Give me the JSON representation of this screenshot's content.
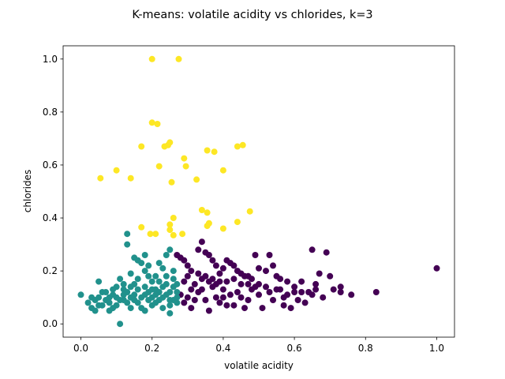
{
  "chart_data": {
    "type": "scatter",
    "title": "K-means: volatile acidity vs chlorides, k=3",
    "xlabel": "volatile acidity",
    "ylabel": "chlorides",
    "xlim": [
      -0.05,
      1.05
    ],
    "ylim": [
      -0.05,
      1.05
    ],
    "xticks": [
      "0.0",
      "0.2",
      "0.4",
      "0.6",
      "0.8",
      "1.0"
    ],
    "yticks": [
      "0.0",
      "0.2",
      "0.4",
      "0.6",
      "0.8",
      "1.0"
    ],
    "grid": false,
    "legend": "none",
    "colormap": "viridis",
    "series": [
      {
        "cluster": 0,
        "color": "#440154",
        "points": [
          [
            0.27,
            0.26
          ],
          [
            0.28,
            0.25
          ],
          [
            0.29,
            0.24
          ],
          [
            0.3,
            0.22
          ],
          [
            0.31,
            0.2
          ],
          [
            0.32,
            0.15
          ],
          [
            0.33,
            0.28
          ],
          [
            0.34,
            0.31
          ],
          [
            0.35,
            0.27
          ],
          [
            0.36,
            0.26
          ],
          [
            0.37,
            0.24
          ],
          [
            0.38,
            0.22
          ],
          [
            0.39,
            0.19
          ],
          [
            0.4,
            0.21
          ],
          [
            0.41,
            0.24
          ],
          [
            0.42,
            0.23
          ],
          [
            0.43,
            0.22
          ],
          [
            0.44,
            0.2
          ],
          [
            0.45,
            0.19
          ],
          [
            0.46,
            0.18
          ],
          [
            0.47,
            0.18
          ],
          [
            0.48,
            0.17
          ],
          [
            0.49,
            0.26
          ],
          [
            0.5,
            0.21
          ],
          [
            0.52,
            0.2
          ],
          [
            0.53,
            0.26
          ],
          [
            0.54,
            0.22
          ],
          [
            0.55,
            0.18
          ],
          [
            0.56,
            0.17
          ],
          [
            0.58,
            0.16
          ],
          [
            0.6,
            0.14
          ],
          [
            0.62,
            0.16
          ],
          [
            0.65,
            0.28
          ],
          [
            0.66,
            0.15
          ],
          [
            0.67,
            0.19
          ],
          [
            0.69,
            0.27
          ],
          [
            0.7,
            0.18
          ],
          [
            0.73,
            0.14
          ],
          [
            0.76,
            0.11
          ],
          [
            0.83,
            0.12
          ],
          [
            1.0,
            0.21
          ],
          [
            0.68,
            0.1
          ],
          [
            0.64,
            0.12
          ],
          [
            0.61,
            0.09
          ],
          [
            0.59,
            0.06
          ],
          [
            0.57,
            0.1
          ],
          [
            0.51,
            0.06
          ],
          [
            0.5,
            0.11
          ],
          [
            0.46,
            0.06
          ],
          [
            0.41,
            0.07
          ],
          [
            0.36,
            0.05
          ],
          [
            0.31,
            0.06
          ],
          [
            0.3,
            0.1
          ],
          [
            0.33,
            0.12
          ],
          [
            0.35,
            0.09
          ],
          [
            0.38,
            0.1
          ],
          [
            0.4,
            0.13
          ],
          [
            0.42,
            0.11
          ],
          [
            0.44,
            0.12
          ],
          [
            0.47,
            0.09
          ],
          [
            0.29,
            0.08
          ],
          [
            0.32,
            0.09
          ],
          [
            0.34,
            0.13
          ],
          [
            0.37,
            0.14
          ],
          [
            0.39,
            0.08
          ],
          [
            0.43,
            0.07
          ],
          [
            0.45,
            0.1
          ],
          [
            0.48,
            0.13
          ],
          [
            0.53,
            0.12
          ],
          [
            0.55,
            0.13
          ],
          [
            0.58,
            0.11
          ],
          [
            0.63,
            0.08
          ],
          [
            0.71,
            0.13
          ],
          [
            0.73,
            0.12
          ],
          [
            0.28,
            0.11
          ],
          [
            0.31,
            0.13
          ],
          [
            0.34,
            0.17
          ],
          [
            0.36,
            0.16
          ],
          [
            0.38,
            0.15
          ],
          [
            0.41,
            0.16
          ],
          [
            0.45,
            0.15
          ],
          [
            0.49,
            0.14
          ],
          [
            0.52,
            0.14
          ],
          [
            0.56,
            0.13
          ],
          [
            0.6,
            0.12
          ],
          [
            0.65,
            0.11
          ],
          [
            0.29,
            0.16
          ],
          [
            0.3,
            0.18
          ],
          [
            0.33,
            0.19
          ],
          [
            0.35,
            0.18
          ],
          [
            0.37,
            0.17
          ],
          [
            0.39,
            0.16
          ],
          [
            0.43,
            0.17
          ],
          [
            0.47,
            0.15
          ],
          [
            0.5,
            0.15
          ],
          [
            0.54,
            0.09
          ],
          [
            0.57,
            0.07
          ],
          [
            0.62,
            0.12
          ],
          [
            0.66,
            0.13
          ],
          [
            0.4,
            0.1
          ]
        ]
      },
      {
        "cluster": 1,
        "color": "#21918c",
        "points": [
          [
            0.0,
            0.11
          ],
          [
            0.02,
            0.08
          ],
          [
            0.03,
            0.1
          ],
          [
            0.04,
            0.09
          ],
          [
            0.05,
            0.16
          ],
          [
            0.05,
            0.07
          ],
          [
            0.06,
            0.12
          ],
          [
            0.07,
            0.09
          ],
          [
            0.08,
            0.05
          ],
          [
            0.09,
            0.11
          ],
          [
            0.1,
            0.14
          ],
          [
            0.11,
            0.17
          ],
          [
            0.11,
            0.0
          ],
          [
            0.12,
            0.13
          ],
          [
            0.13,
            0.34
          ],
          [
            0.13,
            0.3
          ],
          [
            0.14,
            0.19
          ],
          [
            0.15,
            0.15
          ],
          [
            0.15,
            0.25
          ],
          [
            0.16,
            0.24
          ],
          [
            0.17,
            0.23
          ],
          [
            0.18,
            0.26
          ],
          [
            0.18,
            0.2
          ],
          [
            0.19,
            0.22
          ],
          [
            0.2,
            0.16
          ],
          [
            0.21,
            0.18
          ],
          [
            0.22,
            0.23
          ],
          [
            0.23,
            0.21
          ],
          [
            0.24,
            0.26
          ],
          [
            0.25,
            0.28
          ],
          [
            0.26,
            0.14
          ],
          [
            0.27,
            0.12
          ],
          [
            0.25,
            0.04
          ],
          [
            0.22,
            0.09
          ],
          [
            0.2,
            0.07
          ],
          [
            0.18,
            0.05
          ],
          [
            0.16,
            0.08
          ],
          [
            0.14,
            0.06
          ],
          [
            0.12,
            0.09
          ],
          [
            0.1,
            0.07
          ],
          [
            0.08,
            0.1
          ],
          [
            0.06,
            0.07
          ],
          [
            0.04,
            0.05
          ],
          [
            0.03,
            0.06
          ],
          [
            0.09,
            0.06
          ],
          [
            0.13,
            0.12
          ],
          [
            0.15,
            0.11
          ],
          [
            0.17,
            0.1
          ],
          [
            0.19,
            0.12
          ],
          [
            0.21,
            0.13
          ],
          [
            0.23,
            0.1
          ],
          [
            0.24,
            0.11
          ],
          [
            0.26,
            0.09
          ],
          [
            0.27,
            0.1
          ],
          [
            0.11,
            0.09
          ],
          [
            0.13,
            0.08
          ],
          [
            0.16,
            0.13
          ],
          [
            0.18,
            0.14
          ],
          [
            0.2,
            0.1
          ],
          [
            0.22,
            0.12
          ],
          [
            0.24,
            0.15
          ],
          [
            0.26,
            0.17
          ],
          [
            0.07,
            0.12
          ],
          [
            0.09,
            0.13
          ],
          [
            0.12,
            0.11
          ],
          [
            0.14,
            0.1
          ],
          [
            0.17,
            0.06
          ],
          [
            0.19,
            0.09
          ],
          [
            0.21,
            0.08
          ],
          [
            0.23,
            0.06
          ],
          [
            0.25,
            0.07
          ],
          [
            0.27,
            0.08
          ],
          [
            0.1,
            0.1
          ],
          [
            0.15,
            0.09
          ],
          [
            0.2,
            0.13
          ],
          [
            0.25,
            0.12
          ],
          [
            0.05,
            0.1
          ],
          [
            0.08,
            0.08
          ],
          [
            0.12,
            0.15
          ],
          [
            0.16,
            0.17
          ],
          [
            0.19,
            0.18
          ],
          [
            0.22,
            0.16
          ],
          [
            0.24,
            0.18
          ],
          [
            0.26,
            0.2
          ],
          [
            0.27,
            0.15
          ],
          [
            0.14,
            0.14
          ],
          [
            0.18,
            0.11
          ],
          [
            0.21,
            0.11
          ],
          [
            0.23,
            0.14
          ],
          [
            0.25,
            0.09
          ]
        ]
      },
      {
        "cluster": 2,
        "color": "#fde725",
        "points": [
          [
            0.2,
            1.0
          ],
          [
            0.275,
            1.0
          ],
          [
            0.2,
            0.76
          ],
          [
            0.215,
            0.755
          ],
          [
            0.17,
            0.67
          ],
          [
            0.235,
            0.67
          ],
          [
            0.245,
            0.675
          ],
          [
            0.25,
            0.685
          ],
          [
            0.355,
            0.655
          ],
          [
            0.375,
            0.65
          ],
          [
            0.44,
            0.67
          ],
          [
            0.455,
            0.675
          ],
          [
            0.29,
            0.625
          ],
          [
            0.295,
            0.595
          ],
          [
            0.22,
            0.595
          ],
          [
            0.4,
            0.58
          ],
          [
            0.1,
            0.58
          ],
          [
            0.055,
            0.55
          ],
          [
            0.14,
            0.55
          ],
          [
            0.255,
            0.535
          ],
          [
            0.325,
            0.545
          ],
          [
            0.34,
            0.43
          ],
          [
            0.355,
            0.42
          ],
          [
            0.475,
            0.425
          ],
          [
            0.26,
            0.4
          ],
          [
            0.25,
            0.375
          ],
          [
            0.25,
            0.355
          ],
          [
            0.36,
            0.38
          ],
          [
            0.355,
            0.37
          ],
          [
            0.44,
            0.385
          ],
          [
            0.17,
            0.365
          ],
          [
            0.195,
            0.34
          ],
          [
            0.21,
            0.34
          ],
          [
            0.26,
            0.335
          ],
          [
            0.285,
            0.34
          ],
          [
            0.4,
            0.36
          ]
        ]
      }
    ]
  }
}
